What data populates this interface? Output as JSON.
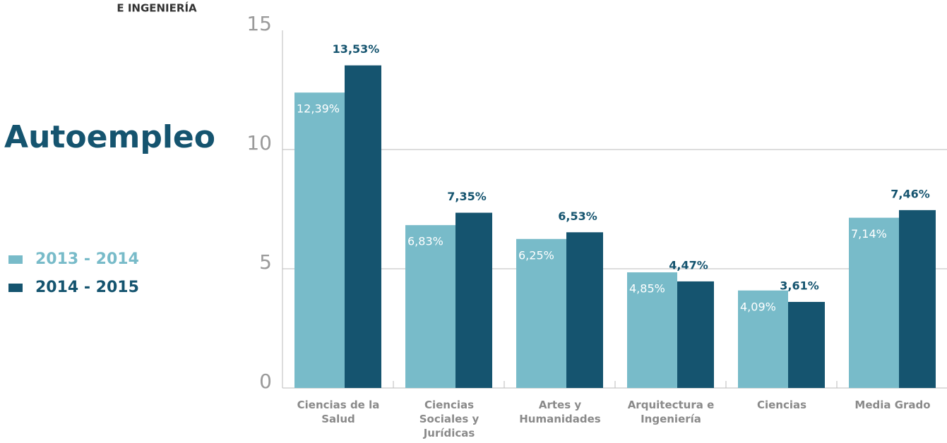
{
  "header": {
    "subtitle": "E INGENIERÍA"
  },
  "chart_data": {
    "type": "bar",
    "title": "Autoempleo",
    "categories": [
      "Ciencias de la Salud",
      "Ciencias Sociales y Jurídicas",
      "Artes y Humanidades",
      "Arquitectura e Ingeniería",
      "Ciencias",
      "Media Grado"
    ],
    "series": [
      {
        "name": "2013 - 2014",
        "color": "#78bbc9",
        "values": [
          12.39,
          6.83,
          6.25,
          4.85,
          4.09,
          7.14
        ],
        "value_labels": [
          "12,39%",
          "6,83%",
          "6,25%",
          "4,85%",
          "4,09%",
          "7,14%"
        ]
      },
      {
        "name": "2014 - 2015",
        "color": "#15546f",
        "values": [
          13.53,
          7.35,
          6.53,
          4.47,
          3.61,
          7.46
        ],
        "value_labels": [
          "13,53%",
          "7,35%",
          "6,53%",
          "4,47%",
          "3,61%",
          "7,46%"
        ]
      }
    ],
    "ylim": [
      0,
      15
    ],
    "yticks": [
      0,
      5,
      10,
      15
    ],
    "grid": true,
    "legend": "left"
  }
}
